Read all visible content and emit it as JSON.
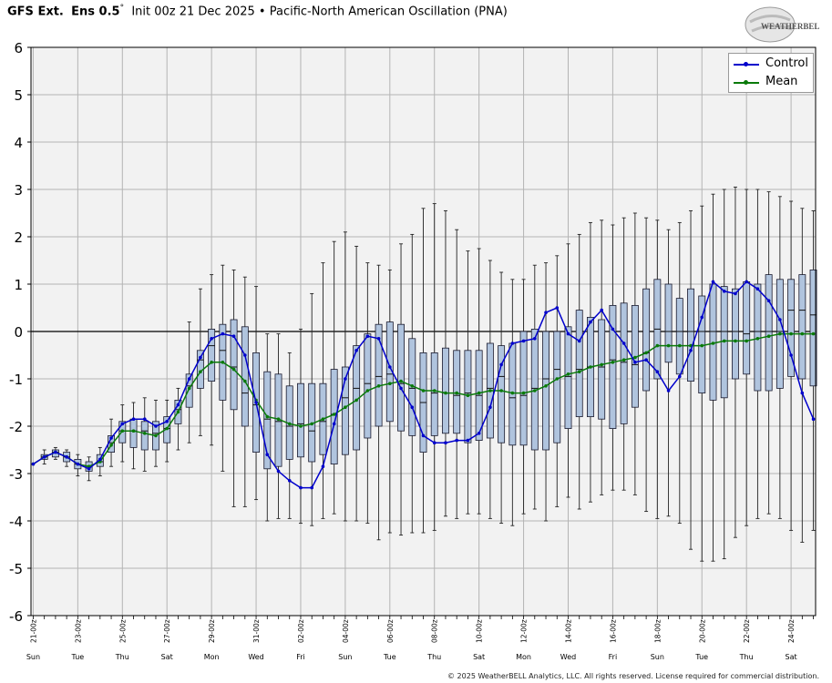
{
  "title": {
    "model": "GFS Ext.",
    "ens": "Ens 0.5",
    "deg": "°",
    "rest": "Init 00z 21 Dec 2025 • Pacific-North American Oscillation (PNA)"
  },
  "logo_text": "WEATHERBELL",
  "copyright": "© 2025 WeatherBELL Analytics, LLC. All rights reserved. License required for commercial distribution.",
  "colors": {
    "control": "#0000cc",
    "mean": "#0a7a0a",
    "box_fill": "#b0c4de",
    "box_edge": "#1a1a2e",
    "plot_bg": "#f2f2f2",
    "grid": "#b4b4b4"
  },
  "chart_data": {
    "type": "box",
    "title": "Pacific-North American Oscillation (PNA)",
    "ylim": [
      -6,
      6
    ],
    "yticks": [
      -6,
      -5,
      -4,
      -3,
      -2,
      -1,
      0,
      1,
      2,
      3,
      4,
      5,
      6
    ],
    "grid": true,
    "legend_placement": "top-right",
    "series_names": [
      "Control",
      "Mean"
    ],
    "x_date_ticks": [
      {
        "label": "21-00z",
        "day": "Sun",
        "t": 0
      },
      {
        "label": "23-00z",
        "day": "Tue",
        "t": 2
      },
      {
        "label": "25-00z",
        "day": "Thu",
        "t": 4
      },
      {
        "label": "27-00z",
        "day": "Sat",
        "t": 6
      },
      {
        "label": "29-00z",
        "day": "Mon",
        "t": 8
      },
      {
        "label": "31-00z",
        "day": "Wed",
        "t": 10
      },
      {
        "label": "02-00z",
        "day": "Fri",
        "t": 12
      },
      {
        "label": "04-00z",
        "day": "Sun",
        "t": 14
      },
      {
        "label": "06-00z",
        "day": "Tue",
        "t": 16
      },
      {
        "label": "08-00z",
        "day": "Thu",
        "t": 18
      },
      {
        "label": "10-00z",
        "day": "Sat",
        "t": 20
      },
      {
        "label": "12-00z",
        "day": "Mon",
        "t": 22
      },
      {
        "label": "14-00z",
        "day": "Wed",
        "t": 24
      },
      {
        "label": "16-00z",
        "day": "Fri",
        "t": 26
      },
      {
        "label": "18-00z",
        "day": "Sun",
        "t": 28
      },
      {
        "label": "20-00z",
        "day": "Tue",
        "t": 30
      },
      {
        "label": "22-00z",
        "day": "Thu",
        "t": 32
      },
      {
        "label": "24-00z",
        "day": "Sat",
        "t": 34
      }
    ],
    "x_start": -0.1,
    "x_end": 35.1,
    "t": [
      0,
      0.5,
      1,
      1.5,
      2,
      2.5,
      3,
      3.5,
      4,
      4.5,
      5,
      5.5,
      6,
      6.5,
      7,
      7.5,
      8,
      8.5,
      9,
      9.5,
      10,
      10.5,
      11,
      11.5,
      12,
      12.5,
      13,
      13.5,
      14,
      14.5,
      15,
      15.5,
      16,
      16.5,
      17,
      17.5,
      18,
      18.5,
      19,
      19.5,
      20,
      20.5,
      21,
      21.5,
      22,
      22.5,
      23,
      23.5,
      24,
      24.5,
      25,
      25.5,
      26,
      26.5,
      27,
      27.5,
      28,
      28.5,
      29,
      29.5,
      30,
      30.5,
      31,
      31.5,
      32,
      32.5,
      33,
      33.5,
      34,
      34.5,
      35
    ],
    "control": [
      -2.8,
      -2.65,
      -2.55,
      -2.65,
      -2.8,
      -2.9,
      -2.7,
      -2.25,
      -1.95,
      -1.85,
      -1.85,
      -2.0,
      -1.9,
      -1.55,
      -1.0,
      -0.55,
      -0.15,
      -0.05,
      -0.1,
      -0.5,
      -1.5,
      -2.6,
      -2.95,
      -3.15,
      -3.3,
      -3.3,
      -2.85,
      -1.95,
      -1.0,
      -0.4,
      -0.1,
      -0.15,
      -0.75,
      -1.2,
      -1.6,
      -2.2,
      -2.35,
      -2.35,
      -2.3,
      -2.3,
      -2.15,
      -1.6,
      -0.7,
      -0.25,
      -0.2,
      -0.15,
      0.4,
      0.5,
      -0.05,
      -0.2,
      0.2,
      0.45,
      0.05,
      -0.25,
      -0.65,
      -0.6,
      -0.85,
      -1.25,
      -0.95,
      -0.4,
      0.3,
      1.05,
      0.85,
      0.8,
      1.05,
      0.9,
      0.65,
      0.25,
      -0.5,
      -1.3,
      -1.85
    ],
    "mean": [
      -2.8,
      -2.65,
      -2.55,
      -2.65,
      -2.8,
      -2.85,
      -2.75,
      -2.4,
      -2.1,
      -2.1,
      -2.15,
      -2.2,
      -2.05,
      -1.7,
      -1.2,
      -0.85,
      -0.65,
      -0.65,
      -0.8,
      -1.05,
      -1.45,
      -1.8,
      -1.85,
      -1.95,
      -2.0,
      -1.95,
      -1.85,
      -1.75,
      -1.6,
      -1.45,
      -1.25,
      -1.15,
      -1.1,
      -1.05,
      -1.15,
      -1.25,
      -1.25,
      -1.3,
      -1.3,
      -1.35,
      -1.3,
      -1.25,
      -1.25,
      -1.3,
      -1.3,
      -1.25,
      -1.15,
      -1.0,
      -0.9,
      -0.85,
      -0.75,
      -0.7,
      -0.65,
      -0.6,
      -0.55,
      -0.45,
      -0.3,
      -0.3,
      -0.3,
      -0.3,
      -0.3,
      -0.25,
      -0.2,
      -0.2,
      -0.2,
      -0.15,
      -0.1,
      -0.05,
      -0.05,
      -0.05,
      -0.05
    ],
    "boxes": [
      {
        "t": 0.5,
        "q1": -2.7,
        "q3": -2.6,
        "med": -2.65,
        "lo": -2.8,
        "hi": -2.5
      },
      {
        "t": 1,
        "q1": -2.65,
        "q3": -2.5,
        "med": -2.55,
        "lo": -2.7,
        "hi": -2.45
      },
      {
        "t": 1.5,
        "q1": -2.75,
        "q3": -2.55,
        "med": -2.65,
        "lo": -2.85,
        "hi": -2.5
      },
      {
        "t": 2,
        "q1": -2.9,
        "q3": -2.7,
        "med": -2.8,
        "lo": -3.05,
        "hi": -2.6
      },
      {
        "t": 2.5,
        "q1": -2.95,
        "q3": -2.75,
        "med": -2.85,
        "lo": -3.15,
        "hi": -2.65
      },
      {
        "t": 3,
        "q1": -2.85,
        "q3": -2.6,
        "med": -2.75,
        "lo": -3.05,
        "hi": -2.45
      },
      {
        "t": 3.5,
        "q1": -2.55,
        "q3": -2.2,
        "med": -2.35,
        "lo": -2.85,
        "hi": -1.85
      },
      {
        "t": 4,
        "q1": -2.35,
        "q3": -1.9,
        "med": -2.1,
        "lo": -2.75,
        "hi": -1.55
      },
      {
        "t": 4.5,
        "q1": -2.45,
        "q3": -1.85,
        "med": -2.1,
        "lo": -2.9,
        "hi": -1.5
      },
      {
        "t": 5,
        "q1": -2.5,
        "q3": -1.9,
        "med": -2.1,
        "lo": -2.95,
        "hi": -1.4
      },
      {
        "t": 5.5,
        "q1": -2.5,
        "q3": -1.9,
        "med": -2.15,
        "lo": -2.85,
        "hi": -1.45
      },
      {
        "t": 6,
        "q1": -2.35,
        "q3": -1.8,
        "med": -2.05,
        "lo": -2.75,
        "hi": -1.45
      },
      {
        "t": 6.5,
        "q1": -1.95,
        "q3": -1.45,
        "med": -1.65,
        "lo": -2.5,
        "hi": -1.2
      },
      {
        "t": 7,
        "q1": -1.6,
        "q3": -0.9,
        "med": -1.15,
        "lo": -2.35,
        "hi": 0.2
      },
      {
        "t": 7.5,
        "q1": -1.2,
        "q3": -0.4,
        "med": -0.6,
        "lo": -2.2,
        "hi": 0.9
      },
      {
        "t": 8,
        "q1": -1.05,
        "q3": 0.05,
        "med": -0.3,
        "lo": -2.4,
        "hi": 1.2
      },
      {
        "t": 8.5,
        "q1": -1.45,
        "q3": 0.15,
        "med": -0.4,
        "lo": -2.95,
        "hi": 1.4
      },
      {
        "t": 9,
        "q1": -1.65,
        "q3": 0.25,
        "med": -0.75,
        "lo": -3.7,
        "hi": 1.3
      },
      {
        "t": 9.5,
        "q1": -2.0,
        "q3": 0.1,
        "med": -1.3,
        "lo": -3.7,
        "hi": 1.15
      },
      {
        "t": 10,
        "q1": -2.55,
        "q3": -0.45,
        "med": -1.55,
        "lo": -3.55,
        "hi": 0.95
      },
      {
        "t": 10.5,
        "q1": -2.9,
        "q3": -0.85,
        "med": -1.85,
        "lo": -4.0,
        "hi": -0.05
      },
      {
        "t": 11,
        "q1": -2.85,
        "q3": -0.9,
        "med": -1.9,
        "lo": -3.95,
        "hi": -0.05
      },
      {
        "t": 11.5,
        "q1": -2.7,
        "q3": -1.15,
        "med": -2.0,
        "lo": -3.95,
        "hi": -0.45
      },
      {
        "t": 12,
        "q1": -2.65,
        "q3": -1.1,
        "med": -1.95,
        "lo": -4.05,
        "hi": 0.05
      },
      {
        "t": 12.5,
        "q1": -2.75,
        "q3": -1.1,
        "med": -2.1,
        "lo": -4.1,
        "hi": 0.8
      },
      {
        "t": 13,
        "q1": -2.6,
        "q3": -1.1,
        "med": -1.9,
        "lo": -3.95,
        "hi": 1.45
      },
      {
        "t": 13.5,
        "q1": -2.8,
        "q3": -0.8,
        "med": -1.75,
        "lo": -3.85,
        "hi": 1.9
      },
      {
        "t": 14,
        "q1": -2.6,
        "q3": -0.75,
        "med": -1.4,
        "lo": -4.0,
        "hi": 2.1
      },
      {
        "t": 14.5,
        "q1": -2.5,
        "q3": -0.3,
        "med": -1.2,
        "lo": -4.0,
        "hi": 1.8
      },
      {
        "t": 15,
        "q1": -2.25,
        "q3": -0.05,
        "med": -1.1,
        "lo": -4.05,
        "hi": 1.45
      },
      {
        "t": 15.5,
        "q1": -2.0,
        "q3": 0.15,
        "med": -0.95,
        "lo": -4.4,
        "hi": 1.4
      },
      {
        "t": 16,
        "q1": -1.9,
        "q3": 0.2,
        "med": -0.9,
        "lo": -4.25,
        "hi": 1.3
      },
      {
        "t": 16.5,
        "q1": -2.1,
        "q3": 0.15,
        "med": -1.1,
        "lo": -4.3,
        "hi": 1.85
      },
      {
        "t": 17,
        "q1": -2.2,
        "q3": -0.15,
        "med": -1.2,
        "lo": -4.25,
        "hi": 2.05
      },
      {
        "t": 17.5,
        "q1": -2.55,
        "q3": -0.45,
        "med": -1.5,
        "lo": -4.25,
        "hi": 2.6
      },
      {
        "t": 18,
        "q1": -2.2,
        "q3": -0.45,
        "med": -1.3,
        "lo": -4.2,
        "hi": 2.7
      },
      {
        "t": 18.5,
        "q1": -2.15,
        "q3": -0.35,
        "med": -1.3,
        "lo": -3.9,
        "hi": 2.55
      },
      {
        "t": 19,
        "q1": -2.15,
        "q3": -0.4,
        "med": -1.35,
        "lo": -3.95,
        "hi": 2.15
      },
      {
        "t": 19.5,
        "q1": -2.35,
        "q3": -0.4,
        "med": -1.3,
        "lo": -3.85,
        "hi": 1.7
      },
      {
        "t": 20,
        "q1": -2.3,
        "q3": -0.4,
        "med": -1.35,
        "lo": -3.85,
        "hi": 1.75
      },
      {
        "t": 20.5,
        "q1": -2.25,
        "q3": -0.25,
        "med": -1.2,
        "lo": -3.95,
        "hi": 1.5
      },
      {
        "t": 21,
        "q1": -2.35,
        "q3": -0.3,
        "med": -0.95,
        "lo": -4.05,
        "hi": 1.25
      },
      {
        "t": 21.5,
        "q1": -2.4,
        "q3": -0.25,
        "med": -1.4,
        "lo": -4.1,
        "hi": 1.1
      },
      {
        "t": 22,
        "q1": -2.4,
        "q3": 0.0,
        "med": -1.35,
        "lo": -3.85,
        "hi": 1.1
      },
      {
        "t": 22.5,
        "q1": -2.5,
        "q3": 0.05,
        "med": -1.2,
        "lo": -3.75,
        "hi": 1.4
      },
      {
        "t": 23,
        "q1": -2.5,
        "q3": 0.0,
        "med": -1.0,
        "lo": -4.0,
        "hi": 1.45
      },
      {
        "t": 23.5,
        "q1": -2.35,
        "q3": 0.0,
        "med": -0.8,
        "lo": -3.7,
        "hi": 1.6
      },
      {
        "t": 24,
        "q1": -2.05,
        "q3": 0.1,
        "med": -0.95,
        "lo": -3.5,
        "hi": 1.85
      },
      {
        "t": 24.5,
        "q1": -1.8,
        "q3": 0.45,
        "med": -0.8,
        "lo": -3.75,
        "hi": 2.05
      },
      {
        "t": 25,
        "q1": -1.8,
        "q3": 0.3,
        "med": -0.75,
        "lo": -3.6,
        "hi": 2.3
      },
      {
        "t": 25.5,
        "q1": -1.85,
        "q3": 0.25,
        "med": -0.75,
        "lo": -3.45,
        "hi": 2.35
      },
      {
        "t": 26,
        "q1": -2.05,
        "q3": 0.55,
        "med": -0.6,
        "lo": -3.35,
        "hi": 2.25
      },
      {
        "t": 26.5,
        "q1": -1.95,
        "q3": 0.6,
        "med": -0.65,
        "lo": -3.35,
        "hi": 2.4
      },
      {
        "t": 27,
        "q1": -1.6,
        "q3": 0.55,
        "med": -0.7,
        "lo": -3.45,
        "hi": 2.5
      },
      {
        "t": 27.5,
        "q1": -1.25,
        "q3": 0.9,
        "med": -0.45,
        "lo": -3.8,
        "hi": 2.4
      },
      {
        "t": 28,
        "q1": -1.0,
        "q3": 1.1,
        "med": 0.05,
        "lo": -3.95,
        "hi": 2.35
      },
      {
        "t": 28.5,
        "q1": -0.65,
        "q3": 1.0,
        "med": 0.0,
        "lo": -3.9,
        "hi": 2.15
      },
      {
        "t": 29,
        "q1": -0.9,
        "q3": 0.7,
        "med": 0.0,
        "lo": -4.05,
        "hi": 2.3
      },
      {
        "t": 29.5,
        "q1": -1.05,
        "q3": 0.9,
        "med": 0.0,
        "lo": -4.6,
        "hi": 2.55
      },
      {
        "t": 30,
        "q1": -1.3,
        "q3": 0.75,
        "med": 0.0,
        "lo": -4.85,
        "hi": 2.65
      },
      {
        "t": 30.5,
        "q1": -1.45,
        "q3": 1.0,
        "med": 0.0,
        "lo": -4.85,
        "hi": 2.9
      },
      {
        "t": 31,
        "q1": -1.4,
        "q3": 0.95,
        "med": 0.0,
        "lo": -4.8,
        "hi": 3.0
      },
      {
        "t": 31.5,
        "q1": -1.0,
        "q3": 0.9,
        "med": 0.0,
        "lo": -4.35,
        "hi": 3.05
      },
      {
        "t": 32,
        "q1": -0.9,
        "q3": 1.05,
        "med": -0.05,
        "lo": -4.1,
        "hi": 3.0
      },
      {
        "t": 32.5,
        "q1": -1.25,
        "q3": 1.0,
        "med": 0.0,
        "lo": -3.95,
        "hi": 3.0
      },
      {
        "t": 33,
        "q1": -1.25,
        "q3": 1.2,
        "med": 0.0,
        "lo": -3.85,
        "hi": 2.95
      },
      {
        "t": 33.5,
        "q1": -1.2,
        "q3": 1.1,
        "med": 0.0,
        "lo": -3.95,
        "hi": 2.85
      },
      {
        "t": 34,
        "q1": -0.95,
        "q3": 1.1,
        "med": 0.45,
        "lo": -4.2,
        "hi": 2.75
      },
      {
        "t": 34.5,
        "q1": -1.0,
        "q3": 1.2,
        "med": 0.45,
        "lo": -4.45,
        "hi": 2.6
      },
      {
        "t": 35,
        "q1": -1.15,
        "q3": 1.3,
        "med": 0.35,
        "lo": -4.2,
        "hi": 2.55
      }
    ]
  }
}
